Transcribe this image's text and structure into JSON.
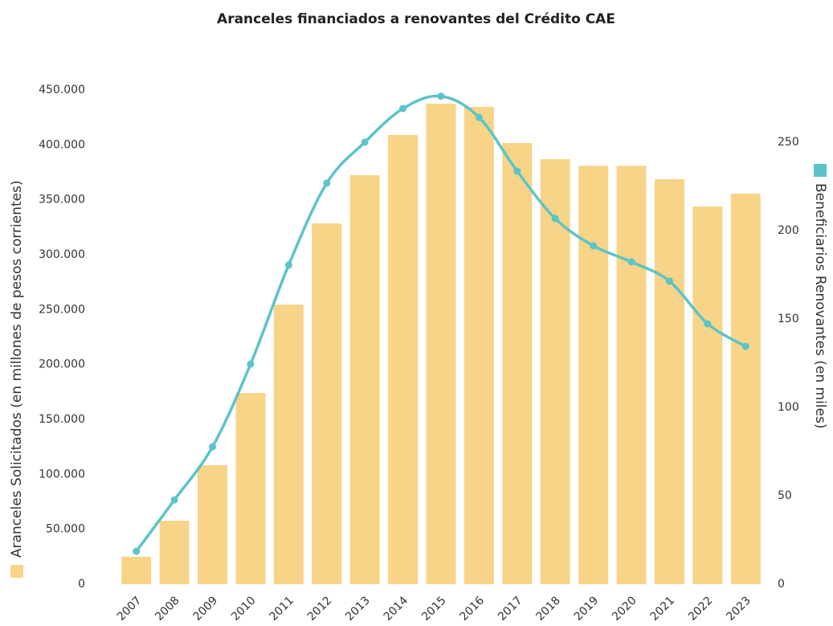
{
  "chart_data": {
    "type": "bar-line",
    "title": "Aranceles financiados a renovantes del Crédito CAE",
    "categories": [
      "2007",
      "2008",
      "2009",
      "2010",
      "2011",
      "2012",
      "2013",
      "2014",
      "2015",
      "2016",
      "2017",
      "2018",
      "2019",
      "2020",
      "2021",
      "2022",
      "2023"
    ],
    "series": [
      {
        "name": "Aranceles Solicitados (en millones de pesos corrientes)",
        "color": "#f7d488",
        "type": "bar",
        "axis": "y",
        "values": [
          25000,
          57800,
          108300,
          174100,
          254600,
          328500,
          372400,
          409000,
          437600,
          434600,
          401700,
          387000,
          381000,
          381000,
          368800,
          343900,
          355600
        ]
      },
      {
        "name": "Beneficiarios Renovantes (en miles)",
        "color": "#5bc4c8",
        "type": "line",
        "axis": "y2",
        "values": [
          18.6,
          47.7,
          77.7,
          124.5,
          180.5,
          226.8,
          250,
          269,
          276,
          264,
          233.6,
          206.8,
          191.4,
          182.3,
          171.4,
          147.3,
          134.5
        ]
      }
    ],
    "ylim": [
      0,
      450000
    ],
    "yticks": [
      0,
      {
        "value": 50000,
        "label": "50.000"
      },
      {
        "value": 100000,
        "label": "100.000"
      },
      {
        "value": 150000,
        "label": "150.000"
      },
      {
        "value": 200000,
        "label": "200.000"
      },
      {
        "value": 250000,
        "label": "250.000"
      },
      {
        "value": 300000,
        "label": "300.000"
      },
      {
        "value": 350000,
        "label": "350.000"
      },
      {
        "value": 400000,
        "label": "400.000"
      },
      {
        "value": 450000,
        "label": "450.000"
      }
    ],
    "y2lim": [
      0,
      279.5
    ],
    "y2ticks": [
      0,
      50,
      100,
      150,
      200,
      250
    ],
    "grid": false
  }
}
